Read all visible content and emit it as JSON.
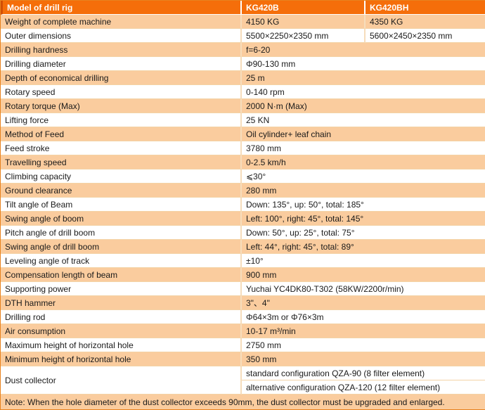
{
  "colors": {
    "header_bg": "#F56E0A",
    "header_text": "#FFFFFF",
    "row_alt_bg": "#FACC9E",
    "row_bg": "#FFFFFF",
    "grid_border": "#F3D3A6",
    "outer_border": "#E8821E",
    "header_accent": "#D14F05",
    "body_text": "#1A1A1A"
  },
  "table": {
    "header": {
      "model_col": "Model of drill rig",
      "model_b": "KG420B",
      "model_bh": "KG420BH"
    },
    "rows": [
      {
        "label": "Weight of complete machine",
        "v1": "4150 KG",
        "v2": "4350 KG"
      },
      {
        "label": "Outer dimensions",
        "v1": "5500×2250×2350 mm",
        "v2": "5600×2450×2350 mm"
      },
      {
        "label": "Drilling hardness",
        "value": "f=6-20"
      },
      {
        "label": "Drilling diameter",
        "value": "Φ90-130 mm"
      },
      {
        "label": "Depth of economical drilling",
        "value": "25 m"
      },
      {
        "label": "Rotary speed",
        "value": "0-140 rpm"
      },
      {
        "label": "Rotary torque (Max)",
        "value": "2000 N·m (Max)"
      },
      {
        "label": "Lifting force",
        "value": "25 KN"
      },
      {
        "label": "Method of Feed",
        "value": "Oil cylinder+ leaf chain"
      },
      {
        "label": "Feed stroke",
        "value": "3780 mm"
      },
      {
        "label": "Travelling speed",
        "value": "0-2.5 km/h"
      },
      {
        "label": "Climbing capacity",
        "value": "⩽30°"
      },
      {
        "label": "Ground clearance",
        "value": "280 mm"
      },
      {
        "label": "Tilt angle of Beam",
        "value": "Down: 135°, up: 50°, total: 185°"
      },
      {
        "label": "Swing angle of boom",
        "value": "Left: 100°, right: 45°, total: 145°"
      },
      {
        "label": "Pitch angle of drill boom",
        "value": "Down: 50°, up: 25°, total: 75°"
      },
      {
        "label": "Swing angle of drill boom",
        "value": "Left: 44°, right: 45°, total: 89°"
      },
      {
        "label": "Leveling angle of track",
        "value": "±10°"
      },
      {
        "label": "Compensation length of beam",
        "value": "900 mm"
      },
      {
        "label": "Supporting power",
        "value": "Yuchai YC4DK80-T302 (58KW/2200r/min)"
      },
      {
        "label": "DTH hammer",
        "value": "3\"、4\""
      },
      {
        "label": "Drilling rod",
        "value": "Φ64×3m or Φ76×3m"
      },
      {
        "label": "Air consumption",
        "value": "10-17 m³/min"
      },
      {
        "label": "Maximum height of horizontal hole",
        "value": "2750 mm"
      },
      {
        "label": "Minimum height of horizontal hole",
        "value": "350 mm"
      }
    ],
    "dust_collector": {
      "label": "Dust collector",
      "standard": "standard configuration QZA-90 (8 filter element)",
      "alternative": "alternative configuration QZA-120 (12 filter element)"
    },
    "note": "Note: When the hole diameter of the dust collector exceeds 90mm, the dust collector must be upgraded and enlarged."
  }
}
